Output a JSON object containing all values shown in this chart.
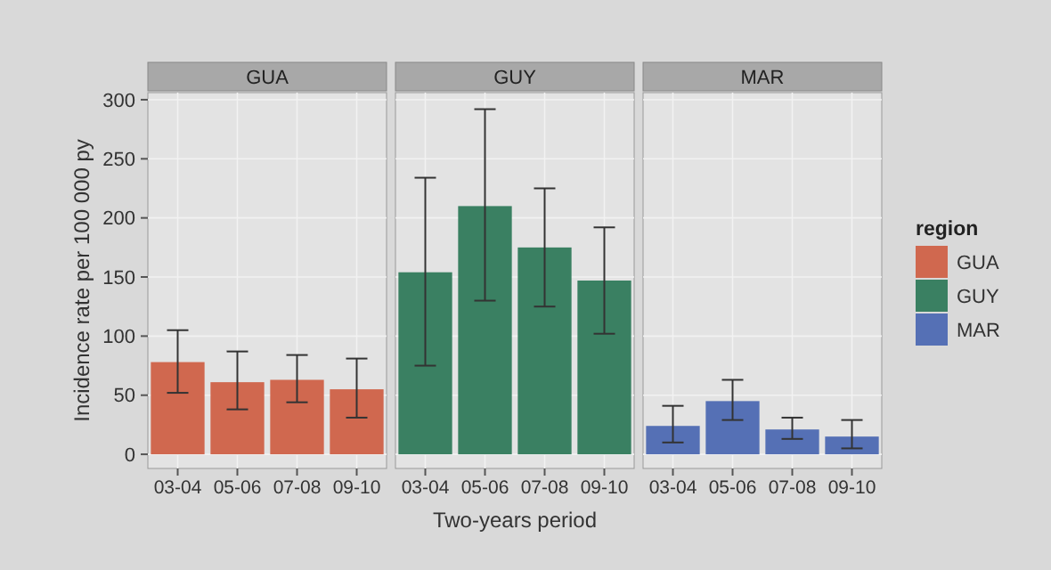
{
  "chart_data": [
    {
      "type": "bar",
      "title": "GUA",
      "ylabel": "Incidence rate per 100 000 py",
      "categories": [
        "03-04",
        "05-06",
        "07-08",
        "09-10"
      ],
      "ylim": [
        -12,
        306
      ],
      "yticks": [
        0,
        50,
        100,
        150,
        200,
        250,
        300
      ],
      "grid": true,
      "legend": "right",
      "legend_title": "region",
      "series": [
        {
          "name": "GUA",
          "color": "#d0684f",
          "values": [
            78,
            61,
            63,
            55
          ],
          "errors": [
            [
              52,
              105
            ],
            [
              38,
              87
            ],
            [
              44,
              84
            ],
            [
              31,
              81
            ]
          ]
        }
      ]
    },
    {
      "type": "bar",
      "title": "GUY",
      "xlabel": "Two-years period",
      "categories": [
        "03-04",
        "05-06",
        "07-08",
        "09-10"
      ],
      "ylim": [
        -12,
        306
      ],
      "yticks": [
        0,
        50,
        100,
        150,
        200,
        250,
        300
      ],
      "grid": true,
      "tick_labels": "x",
      "legend": "right",
      "series": [
        {
          "name": "GUY",
          "color": "#3a8062",
          "values": [
            154,
            210,
            175,
            147
          ],
          "errors": [
            [
              75,
              234
            ],
            [
              130,
              292
            ],
            [
              125,
              225
            ],
            [
              102,
              192
            ]
          ]
        }
      ]
    },
    {
      "type": "bar",
      "title": "MAR",
      "categories": [
        "03-04",
        "05-06",
        "07-08",
        "09-10"
      ],
      "ylim": [
        -12,
        306
      ],
      "yticks": [
        0,
        50,
        100,
        150,
        200,
        250,
        300
      ],
      "grid": true,
      "tick_labels": "x",
      "legend": "right",
      "series": [
        {
          "name": "MAR",
          "color": "#5570b5",
          "values": [
            24,
            45,
            21,
            15
          ],
          "errors": [
            [
              10,
              41
            ],
            [
              29,
              63
            ],
            [
              13,
              31
            ],
            [
              5,
              29
            ]
          ]
        }
      ]
    }
  ]
}
